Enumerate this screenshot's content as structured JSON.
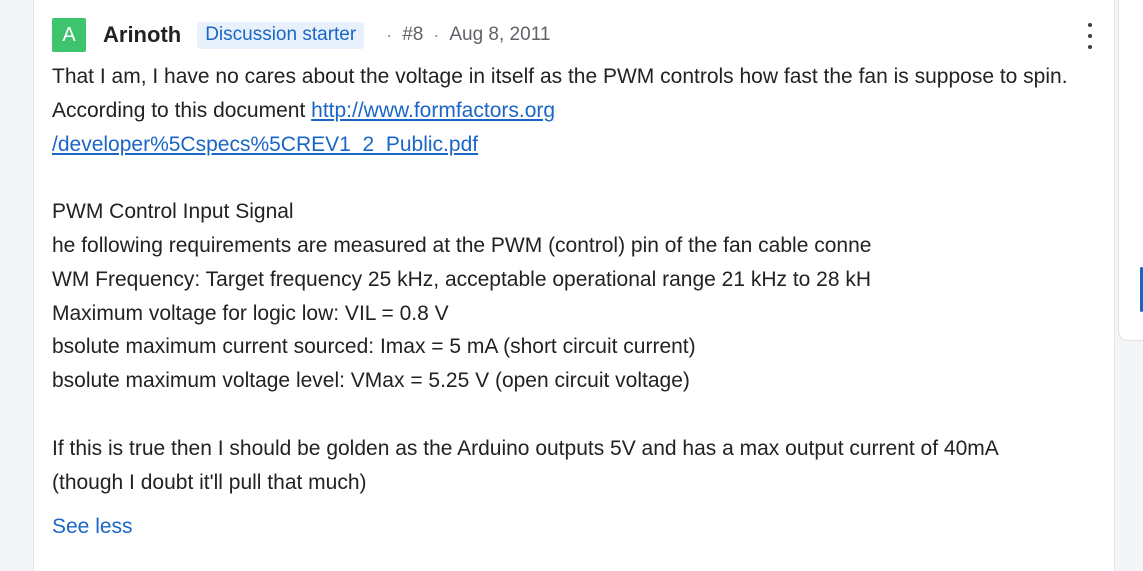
{
  "post": {
    "avatar_letter": "A",
    "username": "Arinoth",
    "badge": "Discussion starter",
    "separator": "·",
    "post_number": "#8",
    "date": "Aug 8, 2011",
    "body": {
      "intro_text": "That I am, I have no cares about the voltage in itself as the PWM controls how fast the fan is suppose to spin. According to this document ",
      "link_line1": "http://www.formfactors.org",
      "link_line2": "/developer%5Cspecs%5CREV1_2_Public.pdf",
      "spec_lines": [
        "PWM Control Input Signal",
        "he following requirements are measured at the PWM (control) pin of the fan cable conne",
        "WM Frequency: Target frequency 25 kHz, acceptable operational range 21 kHz to 28 kH",
        "Maximum voltage for logic low: VIL = 0.8 V",
        "bsolute maximum current sourced: Imax = 5 mA (short circuit current)",
        "bsolute maximum voltage level: VMax = 5.25 V (open circuit voltage)"
      ],
      "closing_line1": "If this is true then I should be golden as the Arduino outputs 5V and has a max output current of 40mA",
      "closing_line2": "(though I doubt it'll pull that much)"
    },
    "see_less_label": "See less"
  },
  "icons": {
    "more": "more-vertical-icon"
  },
  "colors": {
    "avatar_bg": "#3ec46d",
    "accent": "#1a66c7",
    "badge_bg": "#e8f1fb",
    "text": "#222222",
    "meta": "#5f6368"
  }
}
